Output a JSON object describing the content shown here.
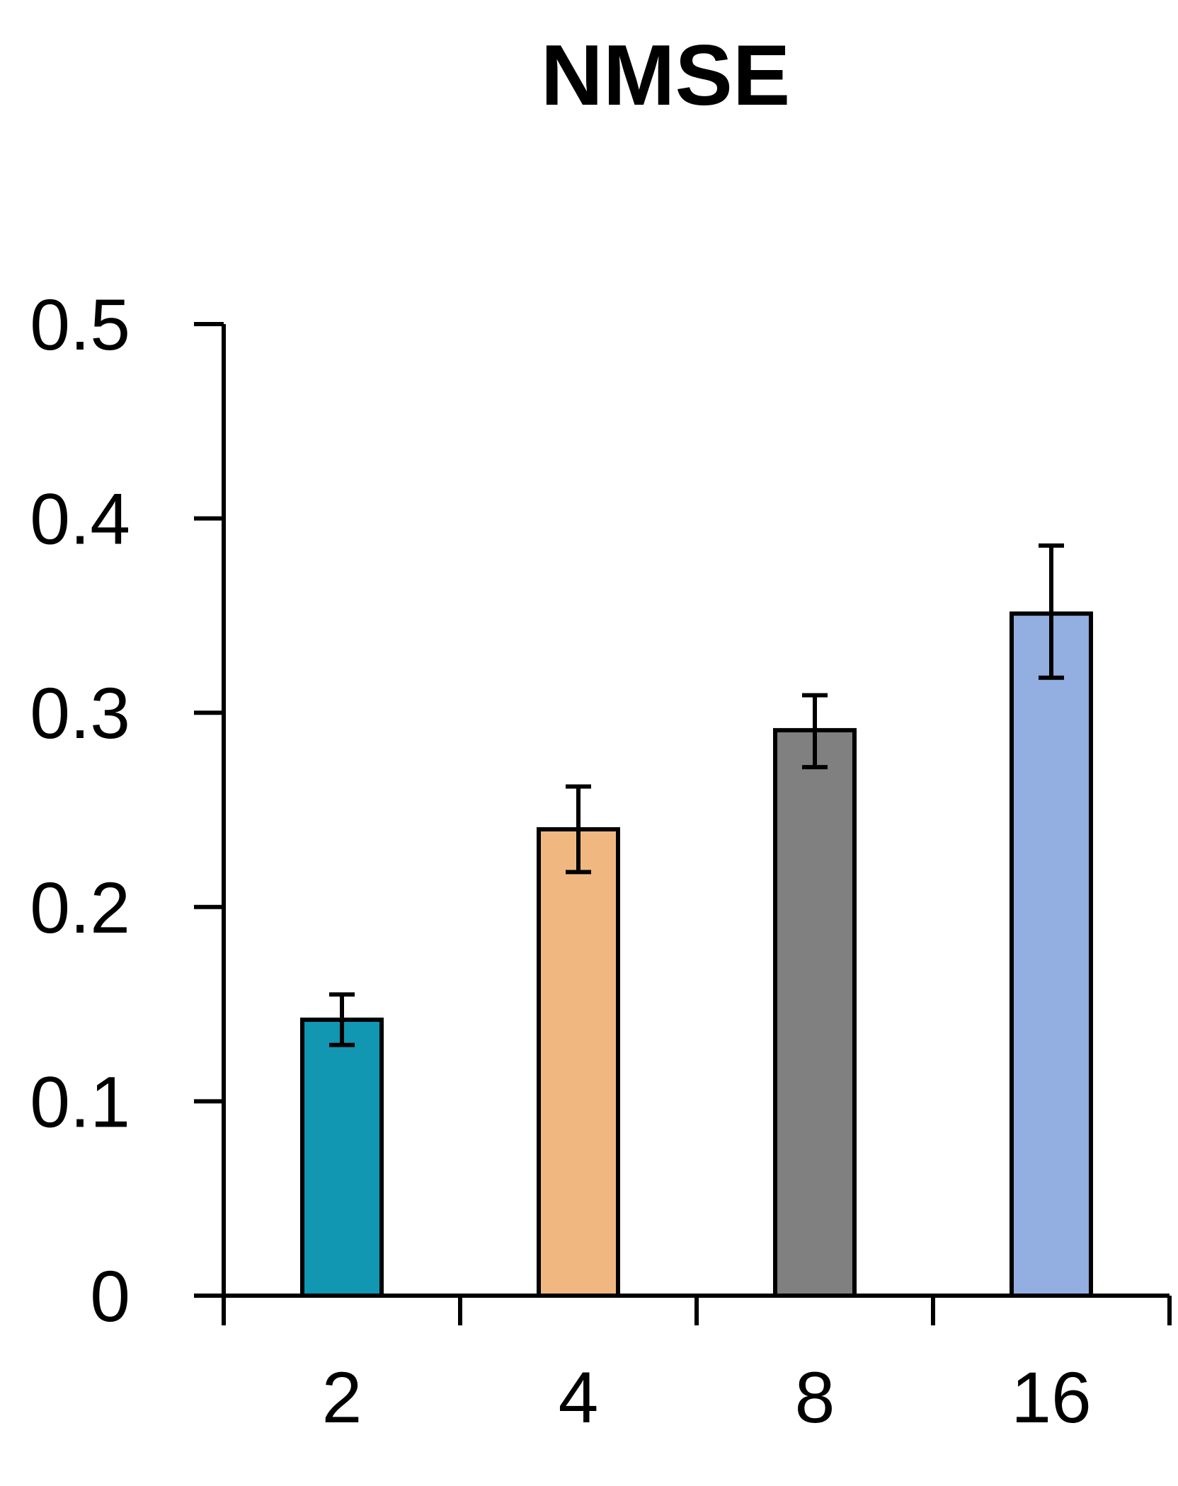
{
  "chart_data": {
    "type": "bar",
    "title": "NMSE",
    "xlabel": "",
    "ylabel": "",
    "categories": [
      "2",
      "4",
      "8",
      "16"
    ],
    "values": [
      0.142,
      0.24,
      0.291,
      0.351
    ],
    "error_low": [
      0.129,
      0.218,
      0.272,
      0.318
    ],
    "error_high": [
      0.155,
      0.262,
      0.309,
      0.386
    ],
    "colors": [
      "#1197b2",
      "#f0b880",
      "#808080",
      "#93aee0"
    ],
    "ylim": [
      0,
      0.5
    ],
    "yticks": [
      "0",
      "0.1",
      "0.2",
      "0.3",
      "0.4",
      "0.5"
    ],
    "grid": false,
    "legend": "none"
  }
}
